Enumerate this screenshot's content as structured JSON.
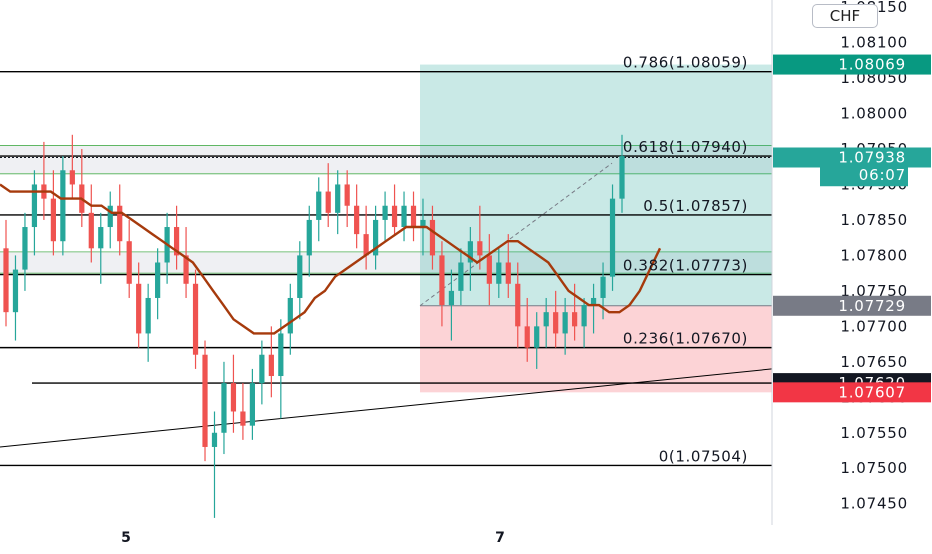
{
  "chart_data": {
    "type": "candlestick",
    "currency_badge": "CHF",
    "x_tick_labels": [
      "5",
      "7"
    ],
    "y_axis": {
      "min": 1.0742,
      "max": 1.0816,
      "tick_labels": [
        "1.08100",
        "1.08050",
        "1.08000",
        "1.07950",
        "1.07900",
        "1.07850",
        "1.07800",
        "1.07750",
        "1.07700",
        "1.07650",
        "1.07600",
        "1.07550",
        "1.07500",
        "1.07450"
      ],
      "top_partial_label": "1.08150"
    },
    "fibonacci_levels": [
      {
        "label": "0.786(1.08059)",
        "value": 1.08059
      },
      {
        "label": "0.618(1.07940)",
        "value": 1.0794
      },
      {
        "label": "0.5(1.07857)",
        "value": 1.07857
      },
      {
        "label": "0.382(1.07773)",
        "value": 1.07773
      },
      {
        "label": "0.236(1.07670)",
        "value": 1.0767
      },
      {
        "label": "0(1.07504)",
        "value": 1.07504
      }
    ],
    "horizontal_lines": [
      1.0762
    ],
    "price_tags": [
      {
        "label": "1.08069",
        "value": 1.08069,
        "color": "#089981"
      },
      {
        "label": "1.07938",
        "value": 1.07938,
        "color": "#26a69a"
      },
      {
        "label": "06:07",
        "value": 1.07913,
        "color": "#26a69a"
      },
      {
        "label": "1.07729",
        "value": 1.07729,
        "color": "#787b86"
      },
      {
        "label": "1.07620",
        "value": 1.0762,
        "color": "#131722"
      },
      {
        "label": "1.07607",
        "value": 1.07607,
        "color": "#f23645"
      }
    ],
    "position": {
      "entry": 1.07729,
      "target": 1.08069,
      "stop": 1.07607
    },
    "supply_demand_zones": [
      {
        "top": 1.07955,
        "bottom": 1.07915
      },
      {
        "top": 1.07805,
        "bottom": 1.07775
      }
    ],
    "candles": [
      [
        1.0781,
        1.0785,
        1.077,
        1.0772
      ],
      [
        1.0772,
        1.078,
        1.0768,
        1.0778
      ],
      [
        1.0778,
        1.0786,
        1.0775,
        1.0784
      ],
      [
        1.0784,
        1.0792,
        1.078,
        1.079
      ],
      [
        1.079,
        1.0796,
        1.0785,
        1.0788
      ],
      [
        1.0788,
        1.0792,
        1.078,
        1.0782
      ],
      [
        1.0782,
        1.0794,
        1.078,
        1.0792
      ],
      [
        1.0792,
        1.0797,
        1.0788,
        1.079
      ],
      [
        1.079,
        1.0795,
        1.0784,
        1.0786
      ],
      [
        1.0786,
        1.079,
        1.0779,
        1.0781
      ],
      [
        1.0781,
        1.0786,
        1.0776,
        1.0784
      ],
      [
        1.0784,
        1.0789,
        1.0781,
        1.0787
      ],
      [
        1.0787,
        1.079,
        1.078,
        1.0782
      ],
      [
        1.0782,
        1.0785,
        1.0774,
        1.0776
      ],
      [
        1.0776,
        1.0779,
        1.0767,
        1.0769
      ],
      [
        1.0769,
        1.0776,
        1.0765,
        1.0774
      ],
      [
        1.0774,
        1.0781,
        1.0771,
        1.0779
      ],
      [
        1.0779,
        1.0786,
        1.0776,
        1.0784
      ],
      [
        1.0784,
        1.0787,
        1.0778,
        1.078
      ],
      [
        1.078,
        1.0784,
        1.0774,
        1.0776
      ],
      [
        1.0776,
        1.0778,
        1.0764,
        1.0766
      ],
      [
        1.0766,
        1.0768,
        1.0751,
        1.0753
      ],
      [
        1.0753,
        1.0758,
        1.0743,
        1.0755
      ],
      [
        1.0755,
        1.0765,
        1.0752,
        1.0762
      ],
      [
        1.0762,
        1.0766,
        1.0755,
        1.0758
      ],
      [
        1.0758,
        1.0762,
        1.0754,
        1.0756
      ],
      [
        1.0756,
        1.0764,
        1.0754,
        1.0762
      ],
      [
        1.0762,
        1.0768,
        1.0759,
        1.0766
      ],
      [
        1.0766,
        1.077,
        1.076,
        1.0763
      ],
      [
        1.0763,
        1.0771,
        1.0757,
        1.0769
      ],
      [
        1.0769,
        1.0776,
        1.0766,
        1.0774
      ],
      [
        1.0774,
        1.0782,
        1.0771,
        1.078
      ],
      [
        1.078,
        1.0787,
        1.0777,
        1.0785
      ],
      [
        1.0785,
        1.0791,
        1.0782,
        1.0789
      ],
      [
        1.0789,
        1.0793,
        1.0784,
        1.0786
      ],
      [
        1.0786,
        1.0792,
        1.0783,
        1.079
      ],
      [
        1.079,
        1.0792,
        1.0784,
        1.0787
      ],
      [
        1.0787,
        1.079,
        1.0781,
        1.0783
      ],
      [
        1.0783,
        1.0787,
        1.0778,
        1.078
      ],
      [
        1.078,
        1.0787,
        1.0778,
        1.0785
      ],
      [
        1.0785,
        1.0789,
        1.0782,
        1.0787
      ],
      [
        1.0787,
        1.079,
        1.0783,
        1.0784
      ],
      [
        1.0784,
        1.0789,
        1.0782,
        1.0787
      ],
      [
        1.0787,
        1.0789,
        1.0782,
        1.0784
      ],
      [
        1.0784,
        1.0788,
        1.078,
        1.0785
      ],
      [
        1.0785,
        1.0787,
        1.0778,
        1.078
      ],
      [
        1.078,
        1.0782,
        1.077,
        1.0773
      ],
      [
        1.0773,
        1.0778,
        1.0768,
        1.0775
      ],
      [
        1.0775,
        1.0781,
        1.0773,
        1.0779
      ],
      [
        1.0779,
        1.0784,
        1.0775,
        1.0782
      ],
      [
        1.0782,
        1.0787,
        1.0778,
        1.078
      ],
      [
        1.078,
        1.0783,
        1.0773,
        1.0776
      ],
      [
        1.0776,
        1.0781,
        1.0774,
        1.0779
      ],
      [
        1.0779,
        1.0783,
        1.0774,
        1.0776
      ],
      [
        1.0776,
        1.0779,
        1.0767,
        1.077
      ],
      [
        1.077,
        1.0774,
        1.0765,
        1.0767
      ],
      [
        1.0767,
        1.0772,
        1.0764,
        1.077
      ],
      [
        1.077,
        1.0774,
        1.0767,
        1.0772
      ],
      [
        1.0772,
        1.0775,
        1.0767,
        1.0769
      ],
      [
        1.0769,
        1.0774,
        1.0766,
        1.0772
      ],
      [
        1.0772,
        1.0776,
        1.0768,
        1.077
      ],
      [
        1.077,
        1.0774,
        1.0767,
        1.0773
      ],
      [
        1.0773,
        1.0776,
        1.0769,
        1.0774
      ],
      [
        1.0774,
        1.0779,
        1.0771,
        1.0777
      ],
      [
        1.0777,
        1.079,
        1.0775,
        1.0788
      ],
      [
        1.0788,
        1.0797,
        1.0786,
        1.0794
      ]
    ],
    "moving_average": [
      1.079,
      1.0789,
      1.0789,
      1.0789,
      1.0789,
      1.0789,
      1.0788,
      1.0788,
      1.0788,
      1.0787,
      1.0787,
      1.0786,
      1.0786,
      1.0785,
      1.0784,
      1.0783,
      1.0782,
      1.0781,
      1.078,
      1.0779,
      1.0777,
      1.0775,
      1.0773,
      1.0771,
      1.077,
      1.0769,
      1.0769,
      1.0769,
      1.077,
      1.0771,
      1.0772,
      1.0774,
      1.0775,
      1.0777,
      1.0778,
      1.0779,
      1.078,
      1.0781,
      1.0782,
      1.0783,
      1.0784,
      1.0784,
      1.0784,
      1.0783,
      1.0782,
      1.0781,
      1.078,
      1.0779,
      1.078,
      1.0781,
      1.0782,
      1.0782,
      1.0781,
      1.078,
      1.0779,
      1.0777,
      1.0775,
      1.0774,
      1.0773,
      1.0773,
      1.0772,
      1.0772,
      1.0773,
      1.0775,
      1.0778,
      1.0781
    ],
    "grid": false,
    "legend": "none",
    "colors": {
      "up": "#26a69a",
      "down": "#ef5350",
      "ma": "#a63a0c",
      "target_zone": "#26a69a",
      "stop_zone": "#f23645"
    }
  }
}
